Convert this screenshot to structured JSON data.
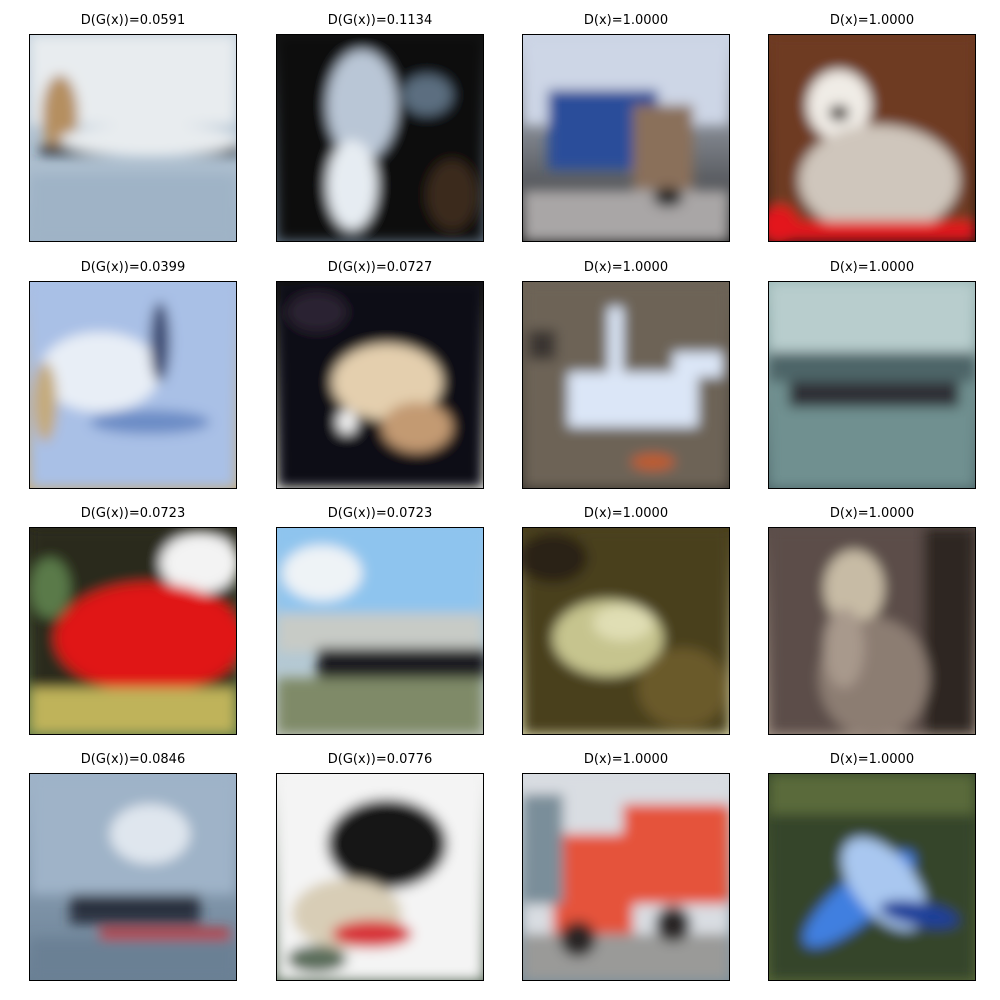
{
  "figure": {
    "panels": [
      {
        "title": "D(G(x))=0.0591",
        "score": 0.0591,
        "depicts": "generated-blur-sky",
        "colors": [
          "#c2d0dc",
          "#e8ecef",
          "#b58f60",
          "#1f2b38",
          "#9fb3c6"
        ]
      },
      {
        "title": "D(G(x))=0.1134",
        "score": 0.1134,
        "depicts": "generated-blur-dark-figure",
        "colors": [
          "#0b0b0b",
          "#b9c6d6",
          "#e6ecf2",
          "#3a2b1e",
          "#5b6e80"
        ]
      },
      {
        "title": "D(x)=1.0000",
        "score": 1.0,
        "depicts": "truck-blue",
        "colors": [
          "#cdd6e6",
          "#2a4d9a",
          "#8a6f5a",
          "#a9a6a6",
          "#2a2a2a"
        ]
      },
      {
        "title": "D(x)=1.0000",
        "score": 1.0,
        "depicts": "dog-white",
        "colors": [
          "#6e3a22",
          "#f0ece6",
          "#cfc6bc",
          "#e3121a",
          "#2a1a14"
        ]
      },
      {
        "title": "D(G(x))=0.0399",
        "score": 0.0399,
        "depicts": "generated-blur-blue",
        "colors": [
          "#a9c0e6",
          "#e8eef6",
          "#6c8cc6",
          "#3a4a72",
          "#c4aa7a"
        ]
      },
      {
        "title": "D(G(x))=0.0727",
        "score": 0.0727,
        "depicts": "generated-blur-beige-blob",
        "colors": [
          "#0c0c12",
          "#e4cfae",
          "#c39a72",
          "#2b2230",
          "#f2f2f2"
        ]
      },
      {
        "title": "D(x)=1.0000",
        "score": 1.0,
        "depicts": "airplane-toy",
        "colors": [
          "#6d6357",
          "#dbe6f7",
          "#8ea1b8",
          "#c35b2b",
          "#3a3530"
        ]
      },
      {
        "title": "D(x)=1.0000",
        "score": 1.0,
        "depicts": "ship",
        "colors": [
          "#9bb8b6",
          "#6f9090",
          "#2e2d36",
          "#b8cdcd",
          "#4d6568"
        ]
      },
      {
        "title": "D(G(x))=0.0723",
        "score": 0.0723,
        "depicts": "generated-blur-red",
        "colors": [
          "#2b2a1c",
          "#e01818",
          "#bfb35a",
          "#f3f3f3",
          "#5a7a4a"
        ]
      },
      {
        "title": "D(G(x))=0.0723",
        "score": 0.0723,
        "depicts": "generated-blur-landscape",
        "colors": [
          "#8ec4ee",
          "#eef3f6",
          "#1e1f20",
          "#7f8a68",
          "#c7cbc6"
        ]
      },
      {
        "title": "D(x)=1.0000",
        "score": 1.0,
        "depicts": "frog",
        "colors": [
          "#4a3f1c",
          "#c6c48e",
          "#6b5a2c",
          "#2a2414",
          "#e0deb4"
        ]
      },
      {
        "title": "D(x)=1.0000",
        "score": 1.0,
        "depicts": "cat",
        "colors": [
          "#5b4e4a",
          "#8c7d72",
          "#c7bba5",
          "#2e2624",
          "#a8998c"
        ]
      },
      {
        "title": "D(G(x))=0.0846",
        "score": 0.0846,
        "depicts": "generated-blur-water",
        "colors": [
          "#9fb3c8",
          "#dfe6ee",
          "#2a3240",
          "#c02a2a",
          "#6a8094"
        ]
      },
      {
        "title": "D(G(x))=0.0776",
        "score": 0.0776,
        "depicts": "generated-blur-dark-object",
        "colors": [
          "#f4f4f4",
          "#141414",
          "#d8cdb6",
          "#d8343a",
          "#5c6e5c"
        ]
      },
      {
        "title": "D(x)=1.0000",
        "score": 1.0,
        "depicts": "truck-red",
        "colors": [
          "#d9dde2",
          "#e5523a",
          "#2a2626",
          "#9a9a98",
          "#7a8e9a"
        ]
      },
      {
        "title": "D(x)=1.0000",
        "score": 1.0,
        "depicts": "airplane-blue-toy",
        "colors": [
          "#35452a",
          "#3f7fe0",
          "#1b3f9a",
          "#a9c7f0",
          "#5a6a3a"
        ]
      }
    ]
  }
}
